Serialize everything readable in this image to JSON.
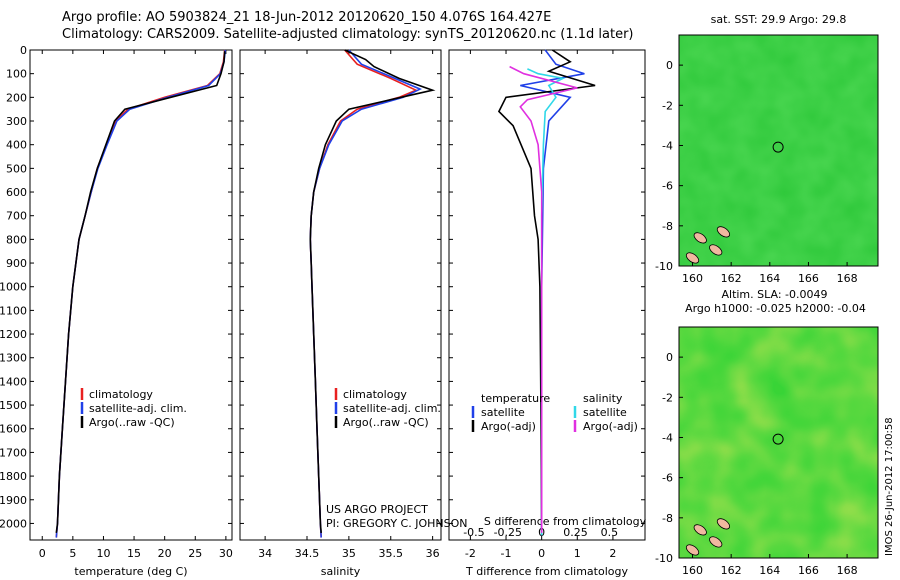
{
  "figure": {
    "title_line1": "Argo profile: AO 5903824_21 18-Jun-2012 20120620_150 4.076S 164.427E",
    "title_line2": "Climatology: CARS2009. Satellite-adjusted climatology: synTS_20120620.nc (1.1d later)",
    "side_stamp": "IMOS 26-Jun-2012 17:00:58",
    "project_line1": "US ARGO PROJECT",
    "project_line2": "PI: GREGORY C. JOHNSON"
  },
  "colors": {
    "climatology": "#e82020",
    "satellite": "#2040e8",
    "argo": "#000000",
    "salinity_satellite": "#30d8e8",
    "salinity_argo": "#e030e0",
    "map_green": "#2ecc2e",
    "land": "#f0b8a0"
  },
  "chart_data": [
    {
      "type": "line",
      "panel": "temperature",
      "xlabel": "temperature (deg C)",
      "ylabel": "",
      "xlim": [
        -2,
        31
      ],
      "ylim": [
        2070,
        0
      ],
      "xticks": [
        0,
        5,
        10,
        15,
        20,
        25,
        30
      ],
      "yticks": [
        0,
        100,
        200,
        300,
        400,
        500,
        600,
        700,
        800,
        900,
        1000,
        1100,
        1200,
        1300,
        1400,
        1500,
        1600,
        1700,
        1800,
        1900,
        2000
      ],
      "legend": [
        "climatology",
        "satellite-adj. clim.",
        "Argo(..raw -QC)"
      ],
      "series": [
        {
          "name": "climatology",
          "points": [
            [
              29.8,
              0
            ],
            [
              29.6,
              50
            ],
            [
              29.0,
              100
            ],
            [
              27.0,
              150
            ],
            [
              20.0,
              200
            ],
            [
              14.0,
              250
            ],
            [
              12.0,
              300
            ],
            [
              10.5,
              400
            ],
            [
              9.0,
              500
            ],
            [
              8.0,
              600
            ],
            [
              7.0,
              700
            ],
            [
              6.0,
              800
            ],
            [
              5.5,
              900
            ],
            [
              5.0,
              1000
            ],
            [
              4.3,
              1200
            ],
            [
              3.8,
              1400
            ],
            [
              3.3,
              1600
            ],
            [
              2.8,
              1800
            ],
            [
              2.5,
              2000
            ],
            [
              2.3,
              2060
            ]
          ]
        },
        {
          "name": "satellite-adj. clim.",
          "points": [
            [
              29.9,
              0
            ],
            [
              29.7,
              50
            ],
            [
              29.1,
              100
            ],
            [
              27.2,
              150
            ],
            [
              20.5,
              200
            ],
            [
              14.3,
              250
            ],
            [
              12.2,
              300
            ],
            [
              10.6,
              400
            ],
            [
              9.1,
              500
            ],
            [
              8.0,
              600
            ],
            [
              7.0,
              700
            ],
            [
              6.0,
              800
            ],
            [
              5.5,
              900
            ],
            [
              5.0,
              1000
            ],
            [
              4.3,
              1200
            ],
            [
              3.8,
              1400
            ],
            [
              3.3,
              1600
            ],
            [
              2.8,
              1800
            ],
            [
              2.5,
              2000
            ],
            [
              2.3,
              2060
            ]
          ]
        },
        {
          "name": "Argo(..raw -QC)",
          "points": [
            [
              29.8,
              5
            ],
            [
              29.7,
              50
            ],
            [
              29.2,
              100
            ],
            [
              28.5,
              150
            ],
            [
              21.0,
              200
            ],
            [
              13.5,
              250
            ],
            [
              11.8,
              300
            ],
            [
              10.4,
              400
            ],
            [
              9.0,
              500
            ],
            [
              7.9,
              600
            ],
            [
              7.0,
              700
            ],
            [
              6.0,
              800
            ],
            [
              5.5,
              900
            ],
            [
              5.0,
              1000
            ],
            [
              4.3,
              1200
            ],
            [
              3.8,
              1400
            ],
            [
              3.3,
              1600
            ],
            [
              2.8,
              1800
            ],
            [
              2.5,
              2000
            ],
            [
              2.3,
              2040
            ]
          ]
        }
      ]
    },
    {
      "type": "line",
      "panel": "salinity",
      "xlabel": "salinity",
      "ylabel": "",
      "xlim": [
        33.7,
        36.1
      ],
      "ylim": [
        2070,
        0
      ],
      "xticks": [
        34,
        34.5,
        35,
        35.5,
        36
      ],
      "legend": [
        "climatology",
        "satellite-adj. clim.",
        "Argo(..raw -QC)"
      ],
      "series": [
        {
          "name": "climatology",
          "points": [
            [
              34.95,
              0
            ],
            [
              35.1,
              60
            ],
            [
              35.5,
              120
            ],
            [
              35.8,
              170
            ],
            [
              35.6,
              200
            ],
            [
              35.1,
              250
            ],
            [
              34.9,
              300
            ],
            [
              34.75,
              400
            ],
            [
              34.65,
              500
            ],
            [
              34.58,
              600
            ],
            [
              34.55,
              700
            ],
            [
              34.54,
              800
            ],
            [
              34.55,
              900
            ],
            [
              34.56,
              1000
            ],
            [
              34.58,
              1200
            ],
            [
              34.6,
              1400
            ],
            [
              34.62,
              1600
            ],
            [
              34.64,
              1800
            ],
            [
              34.66,
              2000
            ],
            [
              34.67,
              2060
            ]
          ]
        },
        {
          "name": "satellite-adj. clim.",
          "points": [
            [
              35.0,
              0
            ],
            [
              35.15,
              60
            ],
            [
              35.55,
              120
            ],
            [
              35.85,
              165
            ],
            [
              35.65,
              200
            ],
            [
              35.15,
              250
            ],
            [
              34.92,
              300
            ],
            [
              34.76,
              400
            ],
            [
              34.65,
              500
            ],
            [
              34.58,
              600
            ],
            [
              34.55,
              700
            ],
            [
              34.54,
              800
            ],
            [
              34.55,
              900
            ],
            [
              34.56,
              1000
            ],
            [
              34.58,
              1200
            ],
            [
              34.6,
              1400
            ],
            [
              34.62,
              1600
            ],
            [
              34.64,
              1800
            ],
            [
              34.66,
              2000
            ],
            [
              34.67,
              2060
            ]
          ]
        },
        {
          "name": "Argo(..raw -QC)",
          "points": [
            [
              34.95,
              0
            ],
            [
              35.2,
              40
            ],
            [
              35.3,
              70
            ],
            [
              35.6,
              120
            ],
            [
              36.0,
              170
            ],
            [
              35.5,
              210
            ],
            [
              35.0,
              250
            ],
            [
              34.85,
              300
            ],
            [
              34.72,
              400
            ],
            [
              34.64,
              500
            ],
            [
              34.58,
              600
            ],
            [
              34.55,
              700
            ],
            [
              34.54,
              800
            ],
            [
              34.55,
              900
            ],
            [
              34.56,
              1000
            ],
            [
              34.58,
              1200
            ],
            [
              34.6,
              1400
            ],
            [
              34.62,
              1600
            ],
            [
              34.64,
              1800
            ],
            [
              34.66,
              2000
            ],
            [
              34.67,
              2040
            ]
          ]
        }
      ]
    },
    {
      "type": "line",
      "panel": "differences",
      "xlabel": "T difference from climatology",
      "xlabel_top": "S difference from climatology",
      "xlim": [
        -2.6,
        2.9
      ],
      "ylim": [
        2070,
        0
      ],
      "xticks": [
        -2,
        -1,
        0,
        1,
        2
      ],
      "xticks_salinity": [
        -0.5,
        -0.25,
        0,
        0.25,
        0.5
      ],
      "legend_headers": [
        "temperature",
        "salinity"
      ],
      "legend": [
        "satellite",
        "Argo(-adj)",
        "satellite",
        "Argo(-adj)"
      ],
      "series": [
        {
          "name": "temperature satellite",
          "points": [
            [
              0.1,
              0
            ],
            [
              0.4,
              60
            ],
            [
              1.2,
              100
            ],
            [
              -0.6,
              150
            ],
            [
              0.8,
              200
            ],
            [
              0.2,
              300
            ],
            [
              0.05,
              500
            ],
            [
              0,
              1000
            ],
            [
              0,
              2050
            ]
          ]
        },
        {
          "name": "temperature Argo(-adj)",
          "points": [
            [
              0.3,
              0
            ],
            [
              0.8,
              50
            ],
            [
              0.2,
              90
            ],
            [
              1.5,
              150
            ],
            [
              -1.0,
              200
            ],
            [
              -1.2,
              260
            ],
            [
              -0.8,
              320
            ],
            [
              -0.3,
              500
            ],
            [
              -0.2,
              700
            ],
            [
              -0.1,
              800
            ],
            [
              -0.05,
              1000
            ],
            [
              -0.02,
              1500
            ],
            [
              0,
              2040
            ]
          ]
        },
        {
          "name": "salinity satellite",
          "points": [
            [
              -0.4,
              80
            ],
            [
              -0.1,
              100
            ],
            [
              0.6,
              120
            ],
            [
              0.2,
              150
            ],
            [
              0.4,
              200
            ],
            [
              0.1,
              260
            ],
            [
              0.05,
              400
            ],
            [
              0,
              700
            ],
            [
              0,
              2050
            ]
          ]
        },
        {
          "name": "salinity Argo(-adj)",
          "points": [
            [
              -0.9,
              70
            ],
            [
              -0.5,
              100
            ],
            [
              1.0,
              160
            ],
            [
              -0.4,
              210
            ],
            [
              -0.6,
              240
            ],
            [
              -0.3,
              300
            ],
            [
              -0.1,
              400
            ],
            [
              0,
              600
            ],
            [
              0,
              2040
            ]
          ]
        }
      ]
    },
    {
      "type": "heatmap",
      "panel": "sst_map",
      "title": "sat. SST: 29.9 Argo: 29.8",
      "xlim": [
        159.3,
        169.6
      ],
      "ylim": [
        -10,
        1.5
      ],
      "xticks": [
        160,
        162,
        164,
        166,
        168
      ],
      "yticks": [
        0,
        -2,
        -4,
        -6,
        -8,
        -10
      ],
      "marker": {
        "lon": 164.43,
        "lat": -4.08
      }
    },
    {
      "type": "heatmap",
      "panel": "sla_map",
      "title": "Altim. SLA: -0.0049",
      "subtitle": "Argo h1000: -0.025 h2000: -0.04",
      "xlim": [
        159.3,
        169.6
      ],
      "ylim": [
        -10,
        1.5
      ],
      "xticks": [
        160,
        162,
        164,
        166,
        168
      ],
      "yticks": [
        0,
        -2,
        -4,
        -6,
        -8,
        -10
      ],
      "marker": {
        "lon": 164.43,
        "lat": -4.08
      }
    }
  ]
}
